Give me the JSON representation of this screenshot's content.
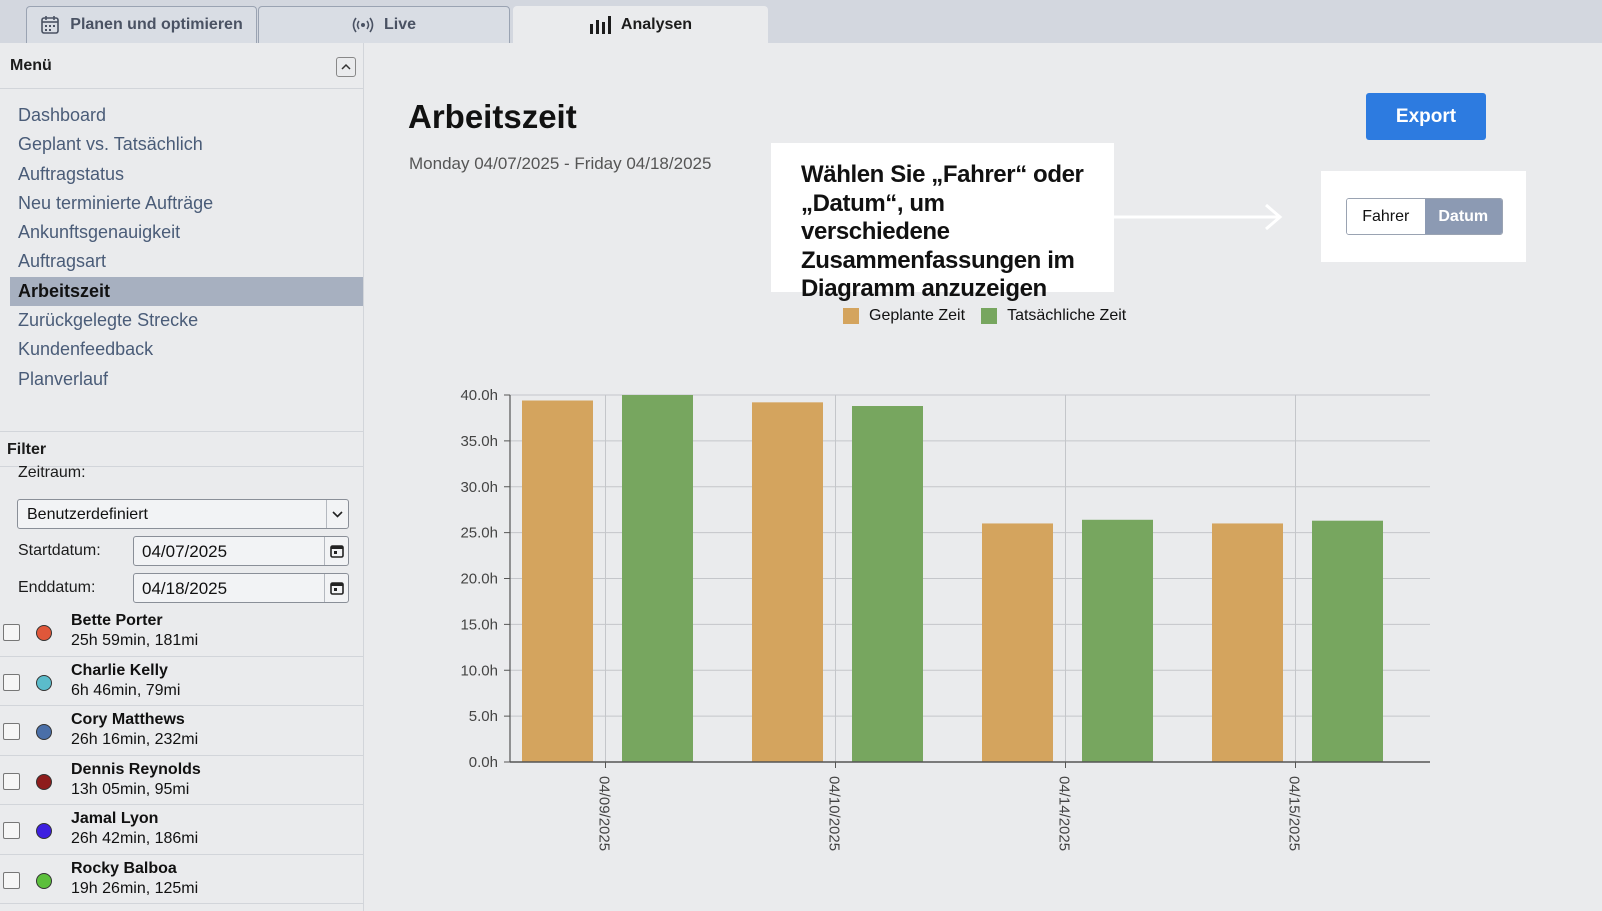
{
  "tabs": [
    {
      "label": "Planen und optimieren",
      "icon": "calendar-icon"
    },
    {
      "label": "Live",
      "icon": "broadcast-icon"
    },
    {
      "label": "Analysen",
      "icon": "bar-chart-icon"
    }
  ],
  "sidebar": {
    "title": "Menü",
    "items": [
      {
        "label": "Dashboard"
      },
      {
        "label": "Geplant vs. Tatsächlich"
      },
      {
        "label": "Auftragstatus"
      },
      {
        "label": "Neu terminierte Aufträge"
      },
      {
        "label": "Ankunftsgenauigkeit"
      },
      {
        "label": "Auftragsart"
      },
      {
        "label": "Arbeitszeit"
      },
      {
        "label": "Zurückgelegte Strecke"
      },
      {
        "label": "Kundenfeedback"
      },
      {
        "label": "Planverlauf"
      }
    ],
    "active_index": 6
  },
  "filter": {
    "title": "Filter",
    "period_label": "Zeitraum:",
    "period_value": "Benutzerdefiniert",
    "start_label": "Startdatum:",
    "start_value": "04/07/2025",
    "end_label": "Enddatum:",
    "end_value": "04/18/2025"
  },
  "drivers": [
    {
      "name": "Bette Porter",
      "stats": "25h 59min, 181mi",
      "color": "#e0573a"
    },
    {
      "name": "Charlie Kelly",
      "stats": "6h 46min, 79mi",
      "color": "#5bbccb"
    },
    {
      "name": "Cory Matthews",
      "stats": "26h 16min, 232mi",
      "color": "#4a6fa8"
    },
    {
      "name": "Dennis Reynolds",
      "stats": "13h 05min, 95mi",
      "color": "#8e1c1c"
    },
    {
      "name": "Jamal Lyon",
      "stats": "26h 42min, 186mi",
      "color": "#3d1fe0"
    },
    {
      "name": "Rocky Balboa",
      "stats": "19h 26min, 125mi",
      "color": "#5cbf3c"
    }
  ],
  "main": {
    "title": "Arbeitszeit",
    "date_range": "Monday 04/07/2025 - Friday 04/18/2025",
    "export_label": "Export",
    "callout": "Wählen Sie „Fahrer“ oder „Datum“, um verschiedene Zusammenfassungen im Diagramm anzuzeigen",
    "toggle": {
      "options": [
        "Fahrer",
        "Datum"
      ],
      "selected": "Datum"
    }
  },
  "colors": {
    "planned": "#d4a45e",
    "actual": "#77a65f",
    "accent": "#2d7be0"
  },
  "chart_data": {
    "type": "bar",
    "categories": [
      "04/09/2025",
      "04/10/2025",
      "04/14/2025",
      "04/15/2025"
    ],
    "series": [
      {
        "name": "Geplante Zeit",
        "values": [
          39.4,
          39.2,
          26.0,
          26.0
        ]
      },
      {
        "name": "Tatsächliche Zeit",
        "values": [
          40.0,
          38.8,
          26.4,
          26.3
        ]
      }
    ],
    "ylim": [
      0,
      40
    ],
    "yticks": [
      "0.0h",
      "5.0h",
      "10.0h",
      "15.0h",
      "20.0h",
      "25.0h",
      "30.0h",
      "35.0h",
      "40.0h"
    ],
    "grid": true,
    "legend": "top"
  }
}
